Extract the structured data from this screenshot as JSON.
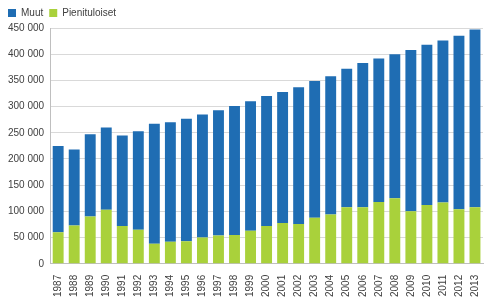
{
  "chart_data": {
    "type": "bar",
    "stacked": true,
    "grid": true,
    "legend": "top-left",
    "categories": [
      "1987",
      "1988",
      "1989",
      "1990",
      "1991",
      "1992",
      "1993",
      "1994",
      "1995",
      "1996",
      "1997",
      "1998",
      "1999",
      "2000",
      "2001",
      "2002",
      "2003",
      "2004",
      "2005",
      "2006",
      "2007",
      "2008",
      "2009",
      "2010",
      "2011",
      "2012",
      "2013"
    ],
    "series": [
      {
        "name": "Pienituloiset",
        "color": "#a9d13b",
        "values": [
          60000,
          73000,
          90000,
          103000,
          72000,
          65000,
          38000,
          42000,
          43000,
          50000,
          54000,
          55000,
          63000,
          72000,
          78000,
          76000,
          88000,
          94000,
          108000,
          108000,
          118000,
          125000,
          100000,
          112000,
          117000,
          104000,
          108000
        ]
      },
      {
        "name": "Muut",
        "color": "#1f6db3",
        "values": [
          165000,
          145000,
          157000,
          157000,
          173000,
          188000,
          229000,
          228000,
          234000,
          235000,
          239000,
          246000,
          247000,
          248000,
          250000,
          261000,
          261000,
          264000,
          264000,
          275000,
          274000,
          275000,
          308000,
          306000,
          309000,
          331000,
          339000
        ]
      }
    ],
    "ylim": [
      0,
      450000
    ],
    "yticks": [
      0,
      {
        "value": 50000,
        "label": "50 000"
      },
      {
        "value": 100000,
        "label": "100 000"
      },
      {
        "value": 150000,
        "label": "150 000"
      },
      {
        "value": 200000,
        "label": "200 000"
      },
      {
        "value": 250000,
        "label": "250 000"
      },
      {
        "value": 300000,
        "label": "300 000"
      },
      {
        "value": 350000,
        "label": "350 000"
      },
      {
        "value": 400000,
        "label": "400 000"
      },
      {
        "value": 450000,
        "label": "450 000"
      }
    ]
  }
}
